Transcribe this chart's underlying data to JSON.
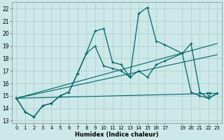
{
  "xlabel": "Humidex (Indice chaleur)",
  "bg_color": "#cce8e8",
  "grid_color": "#aacccc",
  "line_color": "#006666",
  "xlim": [
    -0.5,
    23.5
  ],
  "ylim": [
    12.8,
    22.5
  ],
  "yticks": [
    13,
    14,
    15,
    16,
    17,
    18,
    19,
    20,
    21,
    22
  ],
  "xticks": [
    0,
    1,
    2,
    3,
    4,
    5,
    6,
    7,
    8,
    9,
    10,
    11,
    12,
    13,
    14,
    15,
    16,
    17,
    19,
    20,
    21,
    22,
    23
  ],
  "main_line_x": [
    0,
    1,
    2,
    3,
    4,
    5,
    6,
    7,
    8,
    9,
    10,
    11,
    12,
    13,
    14,
    15,
    16,
    17,
    19,
    20,
    21,
    22,
    23
  ],
  "main_line_y": [
    14.8,
    13.7,
    13.3,
    14.2,
    14.4,
    15.0,
    15.3,
    16.8,
    18.4,
    20.2,
    20.4,
    17.7,
    17.5,
    16.5,
    21.6,
    22.1,
    19.4,
    19.1,
    18.4,
    15.3,
    15.0,
    14.8,
    15.2
  ],
  "line2_x": [
    0,
    1,
    2,
    3,
    4,
    5,
    6,
    7,
    8,
    9,
    10,
    11,
    12,
    13,
    14,
    15,
    16,
    17,
    19,
    20,
    21,
    22,
    23
  ],
  "line2_y": [
    14.8,
    13.7,
    13.3,
    14.2,
    14.4,
    15.0,
    15.3,
    16.8,
    18.4,
    19.0,
    17.4,
    17.2,
    17.0,
    16.5,
    17.0,
    16.5,
    17.5,
    17.8,
    18.4,
    19.2,
    15.3,
    14.8,
    15.2
  ],
  "trend1_x": [
    0,
    23
  ],
  "trend1_y": [
    14.8,
    15.2
  ],
  "trend2_x": [
    0,
    23
  ],
  "trend2_y": [
    14.8,
    18.3
  ],
  "trend3_x": [
    0,
    23
  ],
  "trend3_y": [
    14.8,
    19.2
  ],
  "triangle_x": 22,
  "triangle_y": 15.1
}
